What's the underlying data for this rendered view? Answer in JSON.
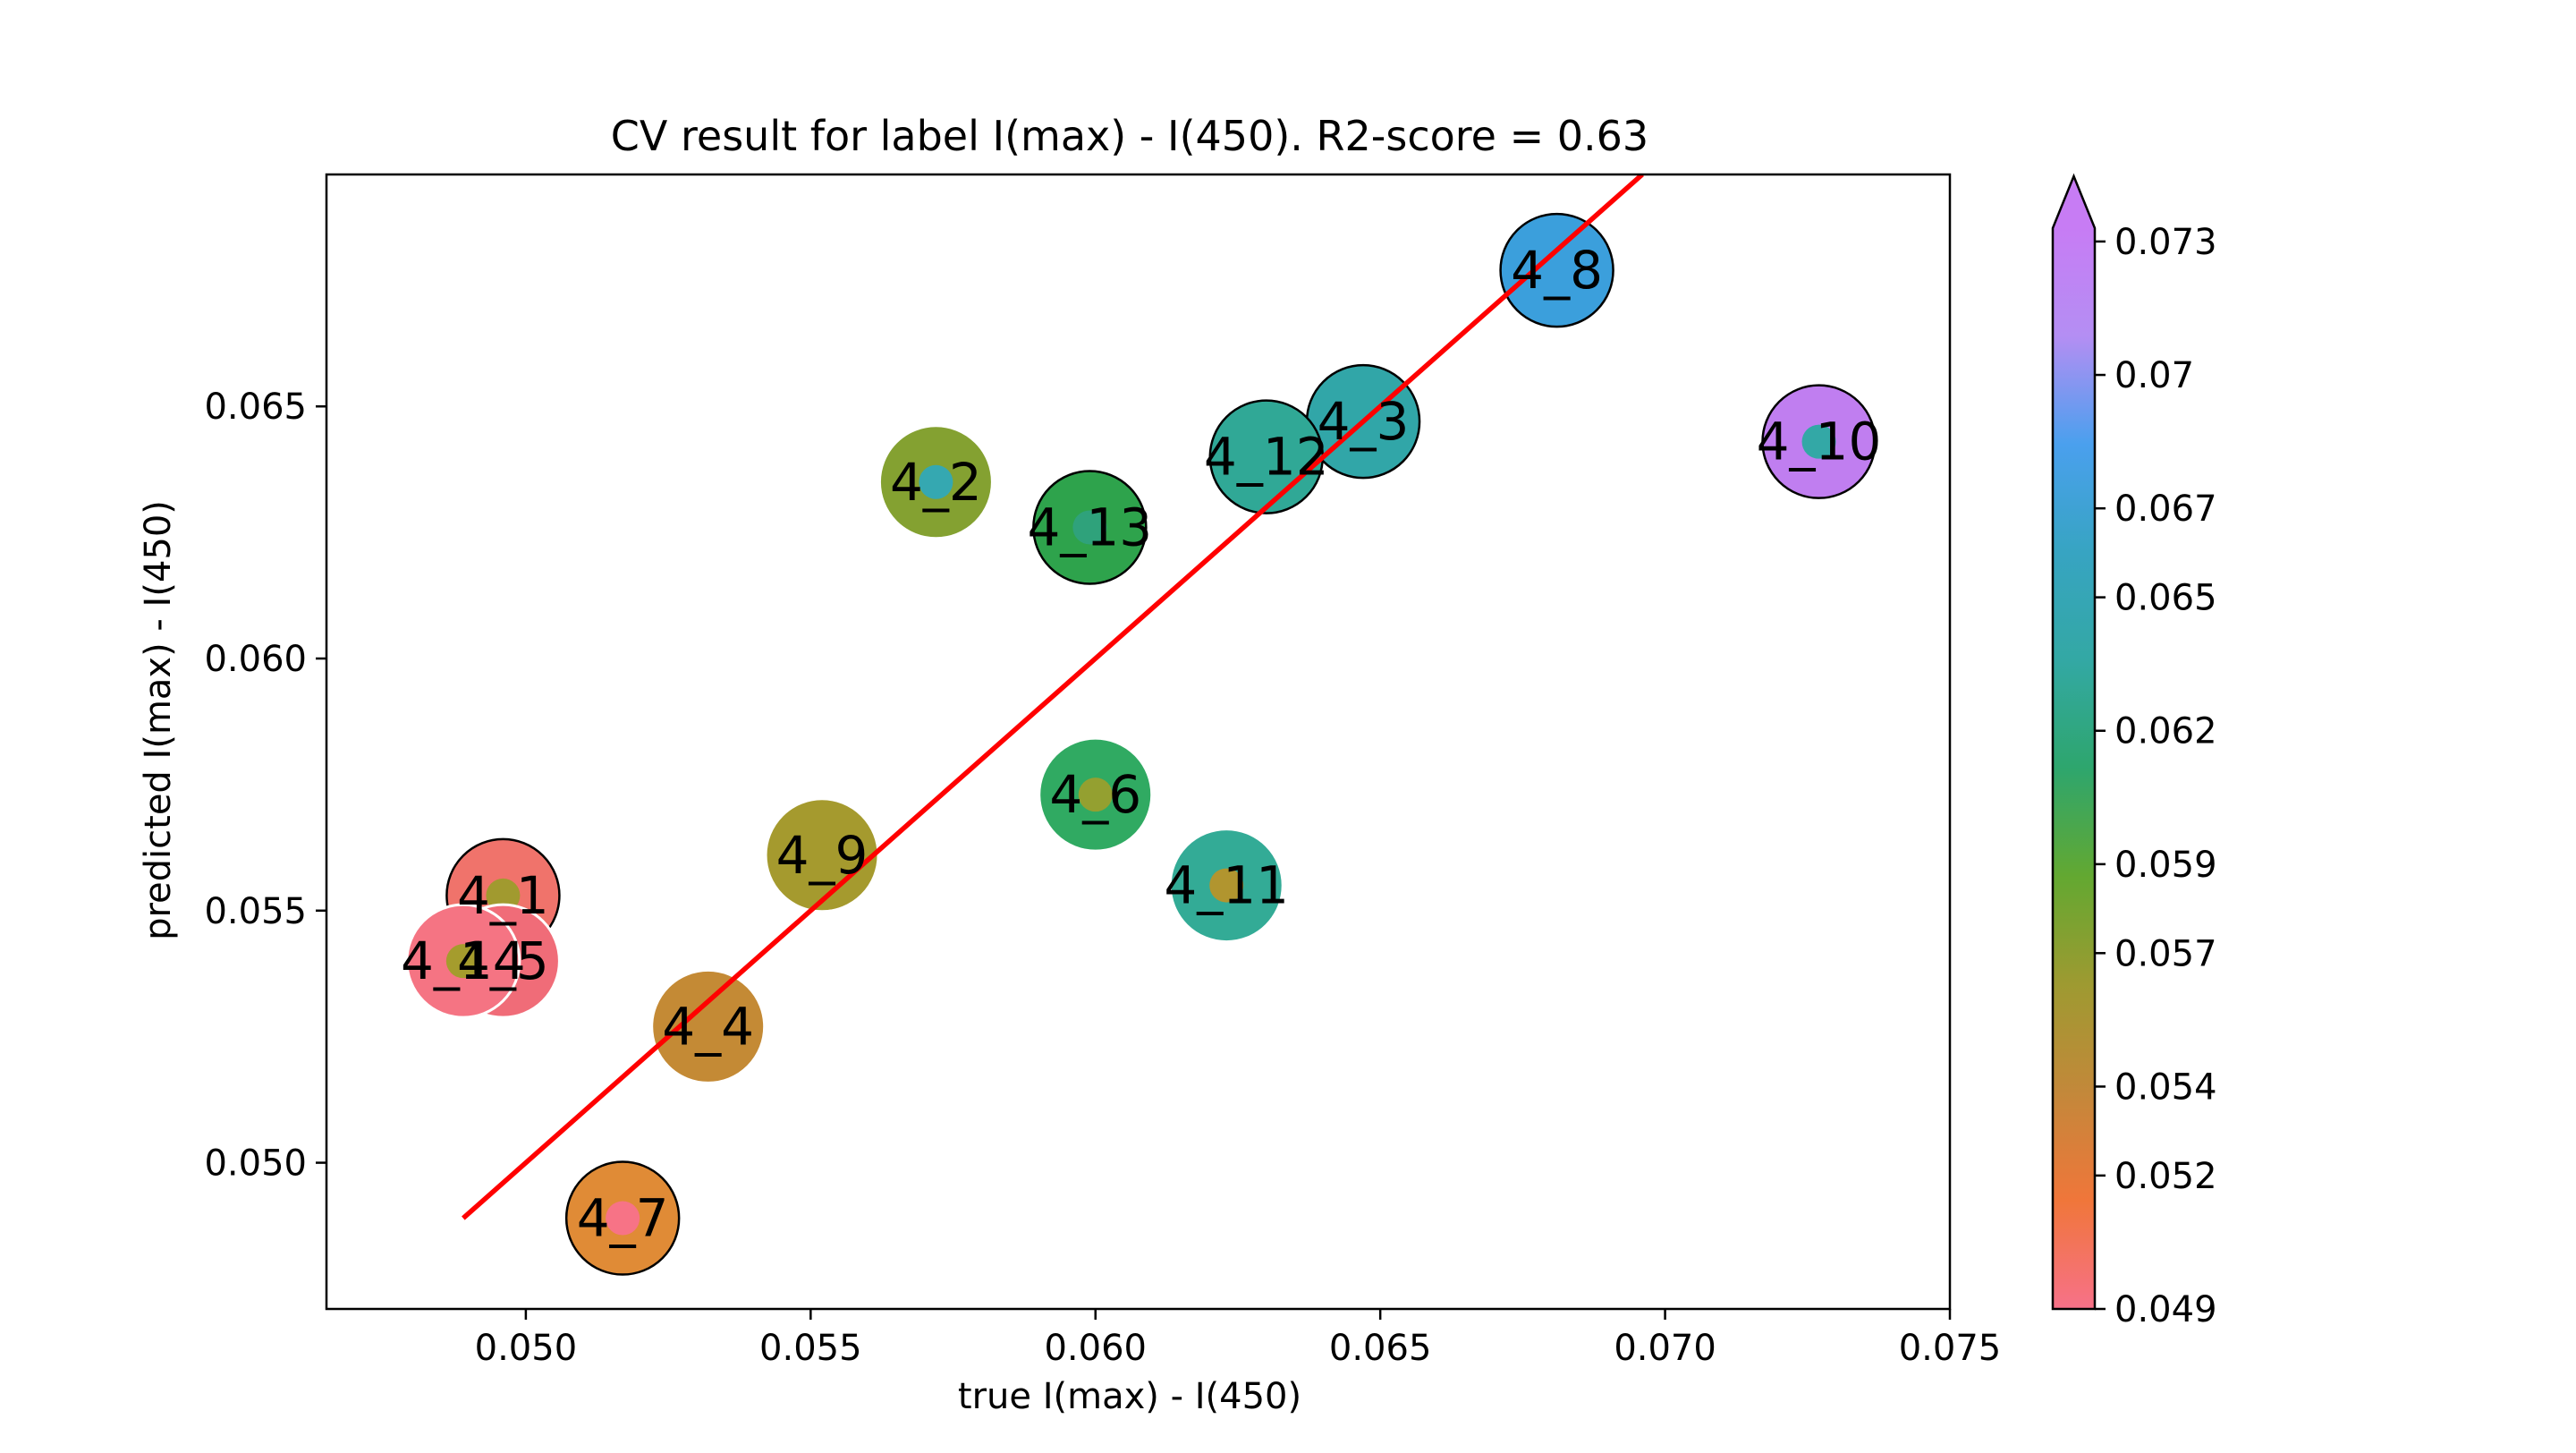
{
  "chart_data": {
    "type": "scatter",
    "title": "CV result for label I(max) - I(450). R2-score = 0.63",
    "xlabel": "true I(max) - I(450)",
    "ylabel": "predicted I(max) - I(450)",
    "xlim": [
      0.0465,
      0.075
    ],
    "ylim": [
      0.0471,
      0.0696
    ],
    "xticks": [
      0.05,
      0.055,
      0.06,
      0.065,
      0.07,
      0.075
    ],
    "xtick_labels": [
      "0.050",
      "0.055",
      "0.060",
      "0.065",
      "0.070",
      "0.075"
    ],
    "yticks": [
      0.05,
      0.055,
      0.06,
      0.065
    ],
    "ytick_labels": [
      "0.050",
      "0.055",
      "0.060",
      "0.065"
    ],
    "grid": false,
    "fit_line": {
      "color": "#ff0000",
      "x": [
        0.0489,
        0.0696
      ],
      "y": [
        0.0489,
        0.0696
      ]
    },
    "points": [
      {
        "label": "4_1",
        "x": 0.0496,
        "y": 0.0553,
        "fill": "#f0736b",
        "inner": "#a19a2f",
        "edge": true
      },
      {
        "label": "4_2",
        "x": 0.0572,
        "y": 0.0635,
        "fill": "#84a131",
        "inner": "#35a8b1",
        "edge": false
      },
      {
        "label": "4_3",
        "x": 0.0647,
        "y": 0.0647,
        "fill": "#31a6a8",
        "inner": null,
        "edge": true
      },
      {
        "label": "4_4",
        "x": 0.0532,
        "y": 0.0527,
        "fill": "#c48a35",
        "inner": null,
        "edge": false
      },
      {
        "label": "4_5",
        "x": 0.0496,
        "y": 0.054,
        "fill": "#f06c78",
        "inner": "#a89a2e",
        "edge": false
      },
      {
        "label": "4_6",
        "x": 0.06,
        "y": 0.0573,
        "fill": "#30aa62",
        "inner": "#94a030",
        "edge": false
      },
      {
        "label": "4_7",
        "x": 0.0517,
        "y": 0.0489,
        "fill": "#e08b36",
        "inner": "#f77386",
        "edge": true
      },
      {
        "label": "4_8",
        "x": 0.0681,
        "y": 0.0677,
        "fill": "#3b9fdc",
        "inner": null,
        "edge": true
      },
      {
        "label": "4_9",
        "x": 0.0552,
        "y": 0.0561,
        "fill": "#a59a2e",
        "inner": null,
        "edge": false
      },
      {
        "label": "4_10",
        "x": 0.0727,
        "y": 0.0643,
        "fill": "#c07ef0",
        "inner": "#33a8a6",
        "edge": true
      },
      {
        "label": "4_11",
        "x": 0.0623,
        "y": 0.0555,
        "fill": "#33ab96",
        "inner": "#b1952f",
        "edge": false
      },
      {
        "label": "4_12",
        "x": 0.063,
        "y": 0.064,
        "fill": "#30a896",
        "inner": null,
        "edge": true
      },
      {
        "label": "4_13",
        "x": 0.0599,
        "y": 0.0626,
        "fill": "#2ea34c",
        "inner": "#2fa27b",
        "edge": true
      },
      {
        "label": "4_14",
        "x": 0.0489,
        "y": 0.054,
        "fill": "#f57483",
        "inner": "#a59c2d",
        "edge": false
      }
    ],
    "colorbar": {
      "ticks": [
        0.049,
        0.052,
        0.054,
        0.057,
        0.059,
        0.062,
        0.065,
        0.067,
        0.07,
        0.073
      ],
      "tick_labels": [
        "0.049",
        "0.052",
        "0.054",
        "0.057",
        "0.059",
        "0.062",
        "0.065",
        "0.067",
        "0.07",
        "0.073"
      ],
      "range": [
        0.049,
        0.0733
      ],
      "extend": "max",
      "colors": [
        "#f77189",
        "#f0763a",
        "#c3883a",
        "#9e9a31",
        "#63a831",
        "#2ea66d",
        "#33a8a4",
        "#37a4c2",
        "#4aa0ee",
        "#b48ef3",
        "#c77cf4"
      ]
    }
  }
}
